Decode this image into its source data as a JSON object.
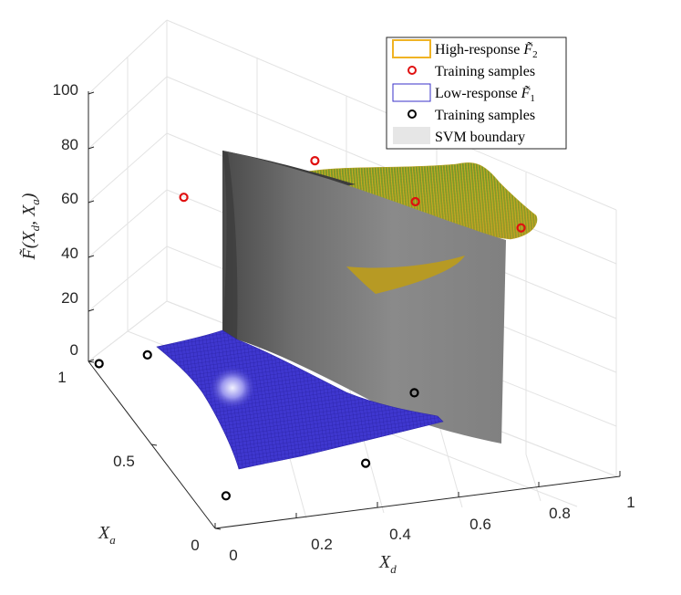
{
  "chart_data": {
    "type": "surface3d",
    "title": "",
    "xlabel": "X_d",
    "ylabel": "X_a",
    "zlabel": "F̃(X_d, X_a)",
    "xlim": [
      0,
      1
    ],
    "ylim": [
      0,
      1
    ],
    "zlim": [
      0,
      100
    ],
    "x_ticks": [
      "0",
      "0.2",
      "0.4",
      "0.6",
      "0.8",
      "1"
    ],
    "y_ticks": [
      "0",
      "0.5",
      "1"
    ],
    "z_ticks": [
      "0",
      "20",
      "40",
      "60",
      "80",
      "100"
    ],
    "grid": true,
    "legend_position": "top-right",
    "legend": [
      {
        "label": "High-response F̃₂",
        "kind": "patch",
        "color": "#f0b323"
      },
      {
        "label": "Training samples",
        "kind": "marker",
        "color": "#e01010"
      },
      {
        "label": "Low-response F̃₁",
        "kind": "patch",
        "color": "#3a32c8"
      },
      {
        "label": "Training samples",
        "kind": "marker",
        "color": "#000000"
      },
      {
        "label": "SVM boundary",
        "kind": "patch",
        "color": "#dcdcdc"
      }
    ],
    "series": [
      {
        "name": "High-response F̃₂",
        "surface": "high",
        "z_range": [
          55,
          65
        ],
        "color_low": "#5a9a2a",
        "color_high": "#e8d81a",
        "samples": [
          {
            "x": 0.22,
            "y": 0.95,
            "z": 60
          },
          {
            "x": 0.55,
            "y": 0.97,
            "z": 66
          },
          {
            "x": 0.72,
            "y": 0.72,
            "z": 63
          },
          {
            "x": 0.95,
            "y": 0.62,
            "z": 55
          }
        ]
      },
      {
        "name": "Low-response F̃₁",
        "surface": "low",
        "z_range": [
          0,
          5
        ],
        "color": "#3a32c8",
        "samples": [
          {
            "x": 0.02,
            "y": 0.98,
            "z": 0
          },
          {
            "x": 0.13,
            "y": 0.95,
            "z": 3
          },
          {
            "x": 0.08,
            "y": 0.17,
            "z": 0
          },
          {
            "x": 0.45,
            "y": 0.25,
            "z": 0
          },
          {
            "x": 0.68,
            "y": 0.6,
            "z": 0
          }
        ]
      },
      {
        "name": "SVM boundary",
        "surface": "boundary",
        "z_range": [
          0,
          100
        ],
        "color": "#808080"
      }
    ]
  },
  "legend_items": {
    "high_label_main": "High-response ",
    "high_label_sym": "F̃",
    "high_label_sub": "2",
    "train_high": "Training samples",
    "low_label_main": "Low-response ",
    "low_label_sym": "F̃",
    "low_label_sub": "1",
    "train_low": "Training samples",
    "svm": "SVM boundary"
  },
  "axis_text": {
    "zlabel_main": "F̃(X",
    "zlabel_sub_d": "d",
    "zlabel_mid": ", X",
    "zlabel_sub_a": "a",
    "zlabel_end": ")",
    "xlabel_main": "X",
    "xlabel_sub": "d",
    "ylabel_main": "X",
    "ylabel_sub": "a"
  }
}
